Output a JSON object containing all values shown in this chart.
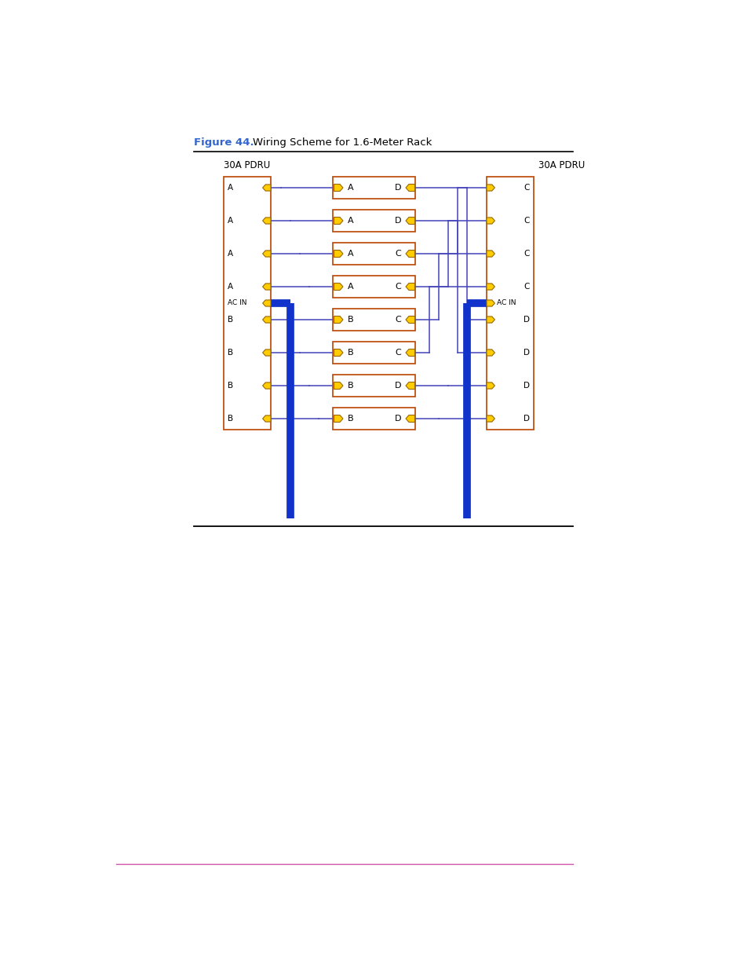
{
  "title_label": "Figure 44.",
  "title_text": "   Wiring Scheme for 1.6-Meter Rack",
  "title_color": "#3366cc",
  "title_text_color": "#000000",
  "bg_color": "#ffffff",
  "line_color": "#4444bb",
  "thick_color": "#1133cc",
  "box_border_color": "#bb4400",
  "connector_fill": "#ffcc00",
  "connector_border": "#996600",
  "left_pdru_label": "30A PDRU",
  "right_pdru_label": "30A PDRU",
  "left_pdru_ports": [
    "A",
    "A",
    "A",
    "A",
    "AC IN",
    "B",
    "B",
    "B",
    "B"
  ],
  "right_pdru_ports": [
    "C",
    "C",
    "C",
    "C",
    "AC IN",
    "D",
    "D",
    "D",
    "D"
  ],
  "center_boxes": [
    {
      "left": "A",
      "right": "D"
    },
    {
      "left": "A",
      "right": "D"
    },
    {
      "left": "A",
      "right": "C"
    },
    {
      "left": "A",
      "right": "C"
    },
    {
      "left": "B",
      "right": "C"
    },
    {
      "left": "B",
      "right": "C"
    },
    {
      "left": "B",
      "right": "D"
    },
    {
      "left": "B",
      "right": "D"
    }
  ],
  "fig_width": 9.54,
  "fig_height": 12.35,
  "dpi": 100
}
